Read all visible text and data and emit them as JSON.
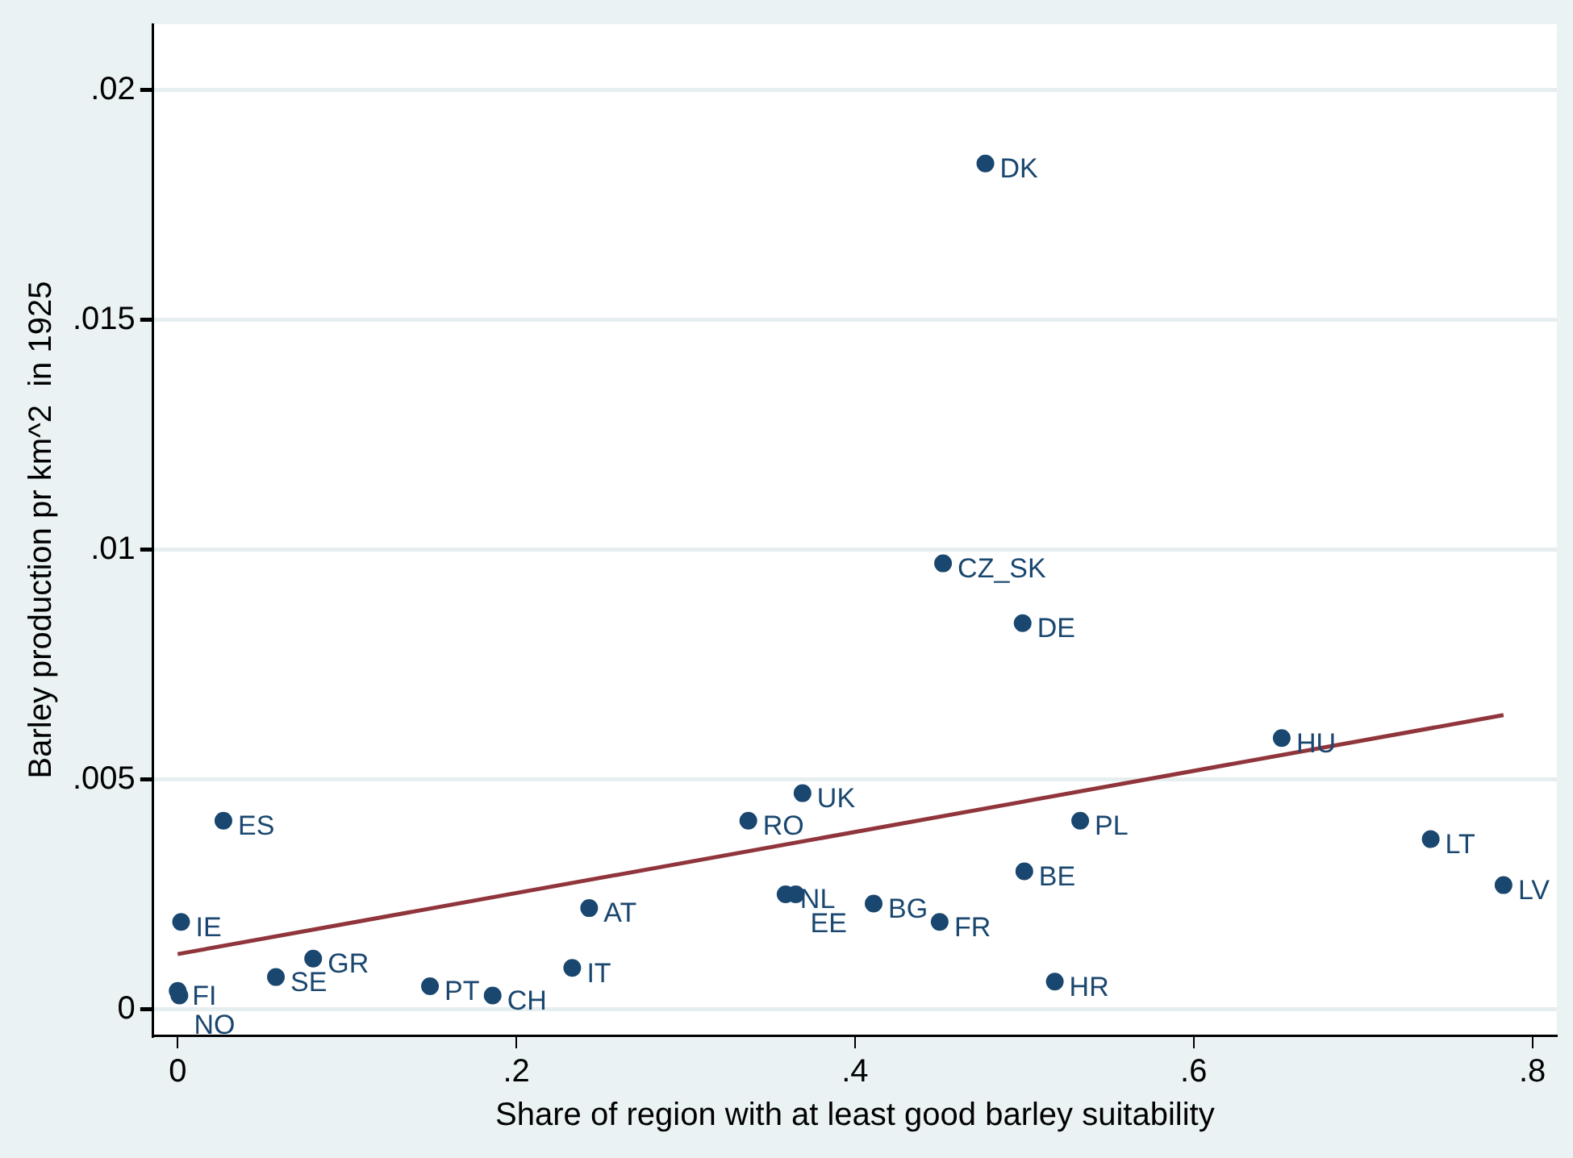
{
  "chart_data": {
    "type": "scatter",
    "xlabel": "Share of region with at least good barley suitability",
    "ylabel": "Barley production pr km^2  in 1925",
    "xlim": [
      -0.0145,
      0.8145
    ],
    "xticks": [
      {
        "value": 0,
        "label": "0"
      },
      {
        "value": 0.2,
        "label": ".2"
      },
      {
        "value": 0.4,
        "label": ".4"
      },
      {
        "value": 0.6,
        "label": ".6"
      },
      {
        "value": 0.8,
        "label": ".8"
      }
    ],
    "ylim": [
      -0.00057,
      0.02143
    ],
    "yticks": [
      {
        "value": 0,
        "label": "0"
      },
      {
        "value": 0.005,
        "label": ".005"
      },
      {
        "value": 0.01,
        "label": ".01"
      },
      {
        "value": 0.015,
        "label": ".015"
      },
      {
        "value": 0.02,
        "label": ".02"
      }
    ],
    "grid": "y",
    "legend": false,
    "marker": "circle",
    "series": [
      {
        "color": "#1a476f",
        "x": [
          0.477,
          0.452,
          0.499,
          0.652,
          0.369,
          0.027,
          0.337,
          0.533,
          0.74,
          0.783,
          0.5,
          0.359,
          0.365,
          0.411,
          0.243,
          0.45,
          0.002,
          0.08,
          0.233,
          0.058,
          0.518,
          0.149,
          0.186,
          0,
          0.001
        ],
        "values": [
          0.0184,
          0.0097,
          0.0084,
          0.0059,
          0.0047,
          0.0041,
          0.0041,
          0.0041,
          0.0037,
          0.0027,
          0.003,
          0.0025,
          0.0025,
          0.0023,
          0.0022,
          0.0019,
          0.0019,
          0.0011,
          0.0009,
          0.0007,
          0.0006,
          0.0005,
          0.0003,
          0.0004,
          0.0003
        ]
      },
      {
        "type": "line",
        "color": "#90353b",
        "marker": "none",
        "x": [
          0,
          0.783
        ],
        "values": [
          0.0012,
          0.0064
        ]
      }
    ],
    "annotations": [
      {
        "text": "DK",
        "x": 0.477,
        "y": 0.0184
      },
      {
        "text": "CZ_SK",
        "x": 0.452,
        "y": 0.0097
      },
      {
        "text": "DE",
        "x": 0.499,
        "y": 0.0084
      },
      {
        "text": "HU",
        "x": 0.652,
        "y": 0.0059
      },
      {
        "text": "UK",
        "x": 0.369,
        "y": 0.0047
      },
      {
        "text": "ES",
        "x": 0.027,
        "y": 0.0041
      },
      {
        "text": "RO",
        "x": 0.337,
        "y": 0.0041
      },
      {
        "text": "PL",
        "x": 0.533,
        "y": 0.0041
      },
      {
        "text": "LT",
        "x": 0.74,
        "y": 0.0037
      },
      {
        "text": "LV",
        "x": 0.783,
        "y": 0.0027
      },
      {
        "text": "BE",
        "x": 0.5,
        "y": 0.003
      },
      {
        "text": "NL",
        "x": 0.359,
        "y": 0.0025
      },
      {
        "text": "EE",
        "x": 0.365,
        "y": 0.0025
      },
      {
        "text": "BG",
        "x": 0.411,
        "y": 0.0023
      },
      {
        "text": "AT",
        "x": 0.243,
        "y": 0.0022
      },
      {
        "text": "FR",
        "x": 0.45,
        "y": 0.0019
      },
      {
        "text": "IE",
        "x": 0.002,
        "y": 0.0019
      },
      {
        "text": "GR",
        "x": 0.08,
        "y": 0.0011
      },
      {
        "text": "IT",
        "x": 0.233,
        "y": 0.0009
      },
      {
        "text": "SE",
        "x": 0.058,
        "y": 0.0007
      },
      {
        "text": "HR",
        "x": 0.518,
        "y": 0.0006
      },
      {
        "text": "PT",
        "x": 0.149,
        "y": 0.0005
      },
      {
        "text": "CH",
        "x": 0.186,
        "y": 0.0003
      },
      {
        "text": "FI",
        "x": 0,
        "y": 0.0004
      },
      {
        "text": "NO",
        "x": 0.001,
        "y": 0.0003
      }
    ]
  }
}
